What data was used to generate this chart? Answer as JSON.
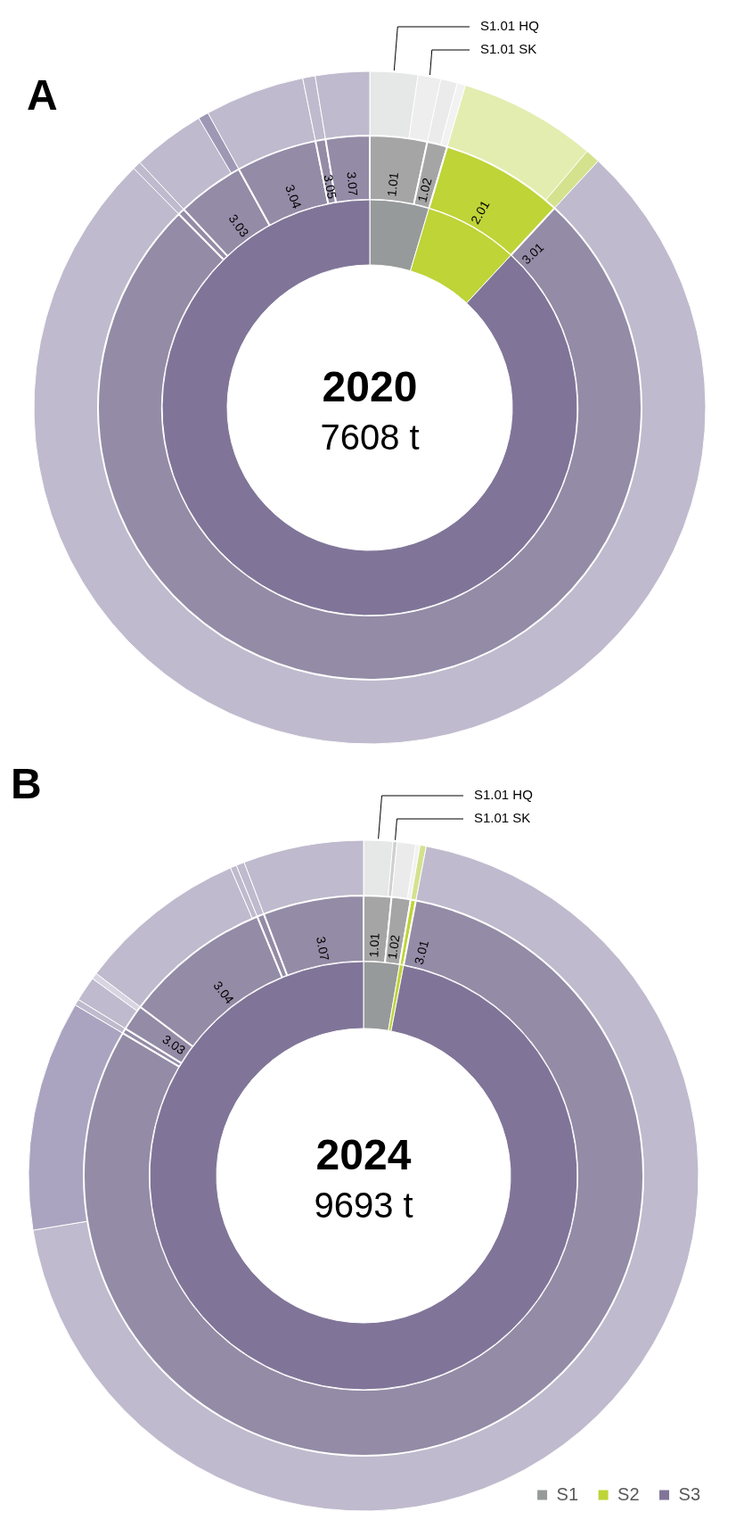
{
  "chart_data": [
    {
      "type": "donut",
      "title": "2020",
      "subtitle": "7608 t",
      "annotations": [
        "A"
      ],
      "categories": [
        null,
        null,
        null
      ],
      "values": [
        4.6,
        7.3,
        88.1
      ],
      "colors": [
        "#979a9a",
        "#bed437",
        "#807598"
      ]
    },
    {
      "type": "donut",
      "categories": [
        "1.01",
        "1.02",
        "2.01",
        "3.01",
        null,
        "3.03",
        "3.04",
        "3.05",
        "3.07"
      ],
      "values": [
        3.4,
        1.2,
        7.3,
        75.7,
        0.4,
        4.0,
        4.8,
        0.6,
        2.6
      ],
      "colors": [
        "#a5a5a5",
        "#a5a5a5",
        "#bed437",
        "#948ba6",
        "#948ba6",
        "#948ba6",
        "#948ba6",
        "#948ba6",
        "#948ba6"
      ]
    },
    {
      "type": "donut",
      "categories": [
        "S1.01 HQ",
        "S1.01 SK",
        null,
        null,
        null,
        null,
        null,
        null,
        null,
        null,
        null,
        null,
        null
      ],
      "values": [
        2.3,
        1.1,
        0.8,
        0.4,
        6.6,
        0.7,
        75.7,
        0.4,
        3.5,
        0.5,
        4.8,
        0.6,
        2.6
      ],
      "colors": [
        "#e6e7e7",
        "#eeeeee",
        "#ebebeb",
        "#f2f2f2",
        "#e3edb0",
        "#d4e28e",
        "#bfbacd",
        "#bfbacd",
        "#bfbacd",
        "#9f98b5",
        "#bfbacd",
        "#bfbacd",
        "#bfbacd"
      ]
    },
    {
      "type": "donut",
      "title": "2024",
      "subtitle": "9693 t",
      "annotations": [
        "B"
      ],
      "legend": "bottom right",
      "categories": [
        "S1",
        "S2",
        "S3"
      ],
      "values": [
        2.7,
        0.3,
        97.0
      ],
      "colors": [
        "#979a9a",
        "#bed437",
        "#807598"
      ]
    },
    {
      "type": "donut",
      "categories": [
        "1.01",
        "1.02",
        null,
        "3.01",
        null,
        "3.03",
        "3.04",
        null,
        "3.07"
      ],
      "values": [
        1.6,
        1.1,
        0.3,
        80.5,
        0.3,
        1.5,
        8.5,
        0.4,
        5.8
      ],
      "colors": [
        "#a5a5a5",
        "#a5a5a5",
        "#bed437",
        "#948ba6",
        "#948ba6",
        "#948ba6",
        "#948ba6",
        "#948ba6",
        "#948ba6"
      ]
    },
    {
      "type": "donut",
      "categories": [
        "S1.01 HQ",
        "S1.01 SK",
        null,
        null,
        null,
        null,
        null,
        null,
        null,
        null,
        null,
        null,
        null,
        null
      ],
      "values": [
        1.4,
        0.2,
        0.9,
        0.2,
        0.3,
        69.4,
        11.1,
        0.3,
        1.2,
        0.3,
        8.2,
        0.3,
        0.4,
        5.8
      ],
      "colors": [
        "#e6e7e7",
        "#d0d0d0",
        "#ebebeb",
        "#f2f2f2",
        "#d4e28e",
        "#bfbacd",
        "#aaa4c0",
        "#bfbacd",
        "#bfbacd",
        "#d8d5e2",
        "#bfbacd",
        "#bfbacd",
        "#bfbacd",
        "#bfbacd"
      ]
    }
  ]
}
